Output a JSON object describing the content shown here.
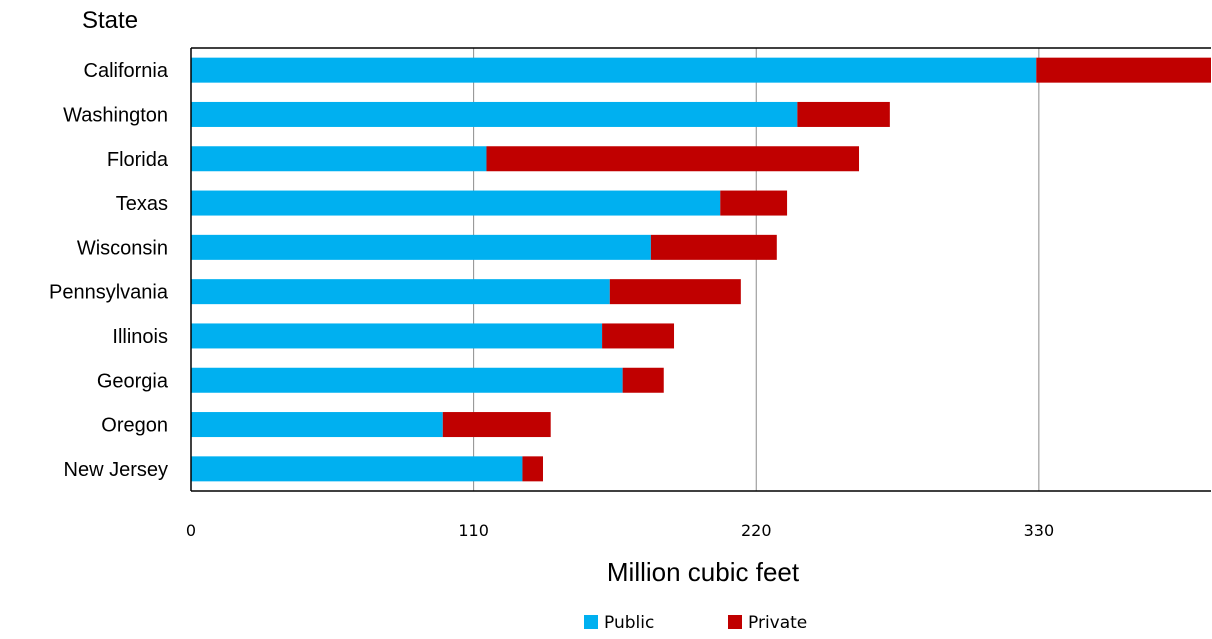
{
  "chart_data": {
    "type": "bar",
    "orientation": "horizontal",
    "stacked": true,
    "title": "",
    "ylabel": "State",
    "xlabel": "Million cubic feet",
    "xlim": [
      0,
      397
    ],
    "xticks": [
      0,
      110,
      220,
      330
    ],
    "grid": true,
    "legend_position": "bottom",
    "categories": [
      "California",
      "Washington",
      "Florida",
      "Texas",
      "Wisconsin",
      "Pennsylvania",
      "Illinois",
      "Georgia",
      "Oregon",
      "New Jersey"
    ],
    "series": [
      {
        "name": "Public",
        "color": "#00B0F0",
        "values": [
          329,
          236,
          115,
          206,
          179,
          163,
          160,
          168,
          98,
          129
        ]
      },
      {
        "name": "Private",
        "color": "#C00000",
        "values": [
          68,
          36,
          145,
          26,
          49,
          51,
          28,
          16,
          42,
          8
        ]
      }
    ]
  }
}
